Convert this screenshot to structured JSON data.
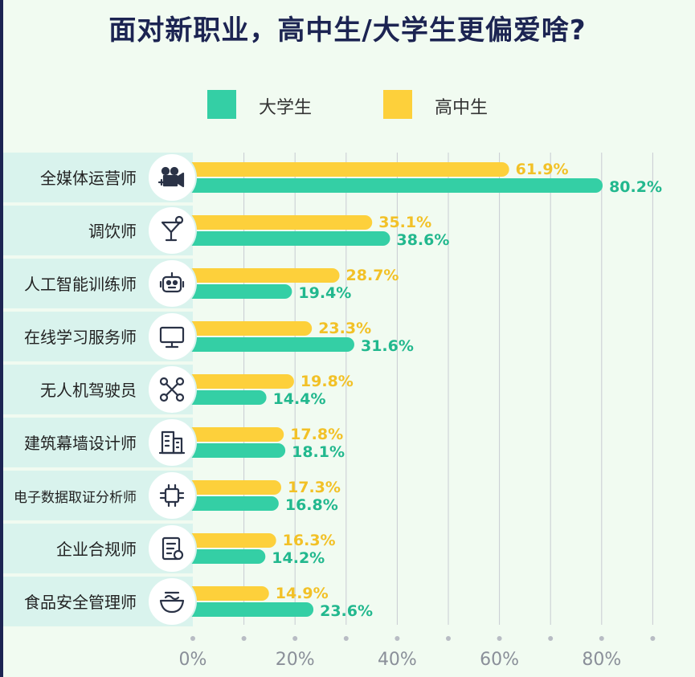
{
  "title": "面对新职业，高中生/大学生更偏爱啥?",
  "colors": {
    "university": "#34cfa5",
    "highschool": "#fdd03b",
    "row_bg": "#d9f3ed",
    "grid": "#b8bcc4",
    "axis_text": "#8a8f99"
  },
  "chart_data": {
    "type": "bar",
    "orientation": "horizontal",
    "title": "面对新职业，高中生/大学生更偏爱啥?",
    "legend_position": "top",
    "xlim": [
      0,
      90
    ],
    "x_ticks": [
      "0%",
      "20%",
      "40%",
      "60%",
      "80%"
    ],
    "x_tick_values": [
      0,
      20,
      40,
      60,
      80
    ],
    "categories": [
      "全媒体运营师",
      "调饮师",
      "人工智能训练师",
      "在线学习服务师",
      "无人机驾驶员",
      "建筑幕墙设计师",
      "电子数据取证分析师",
      "企业合规师",
      "食品安全管理师"
    ],
    "icons": [
      "video-people-icon",
      "cocktail-icon",
      "robot-icon",
      "monitor-icon",
      "drone-icon",
      "building-icon",
      "circuit-chip-icon",
      "certificate-icon",
      "food-bowl-icon"
    ],
    "series": [
      {
        "name": "高中生",
        "color": "#fdd03b",
        "values": [
          61.9,
          35.1,
          28.7,
          23.3,
          19.8,
          17.8,
          17.3,
          16.3,
          14.9
        ],
        "labels": [
          "61.9%",
          "35.1%",
          "28.7%",
          "23.3%",
          "19.8%",
          "17.8%",
          "17.3%",
          "16.3%",
          "14.9%"
        ]
      },
      {
        "name": "大学生",
        "color": "#34cfa5",
        "values": [
          80.2,
          38.6,
          19.4,
          31.6,
          14.4,
          18.1,
          16.8,
          14.2,
          23.6
        ],
        "labels": [
          "80.2%",
          "38.6%",
          "19.4%",
          "31.6%",
          "14.4%",
          "18.1%",
          "16.8%",
          "14.2%",
          "23.6%"
        ]
      }
    ]
  }
}
